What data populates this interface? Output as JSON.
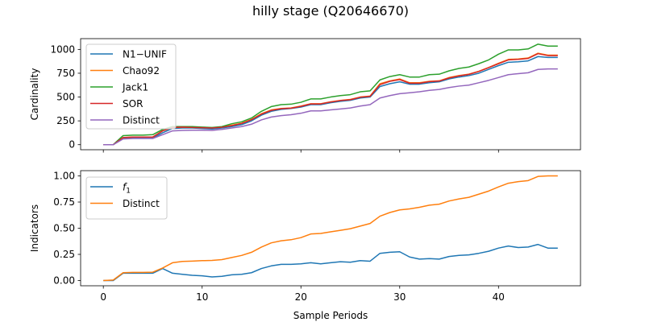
{
  "figure": {
    "title": "hilly stage (Q20646670)"
  },
  "colors": {
    "blue": "#1f77b4",
    "orange": "#ff7f0e",
    "green": "#2ca02c",
    "red": "#d62728",
    "purple": "#9467bd"
  },
  "chart_data": [
    {
      "type": "line",
      "title": "hilly stage (Q20646670)",
      "xlabel": "",
      "ylabel": "Cardinality",
      "xlim": [
        -2.3,
        48.3
      ],
      "ylim": [
        -53,
        1113
      ],
      "xticks": [
        0,
        10,
        20,
        30,
        40
      ],
      "xtick_labels_visible": false,
      "yticks": [
        0,
        250,
        500,
        750,
        1000
      ],
      "grid": false,
      "legend_position": "upper left",
      "x": [
        0,
        1,
        2,
        3,
        4,
        5,
        6,
        7,
        8,
        9,
        10,
        11,
        12,
        13,
        14,
        15,
        16,
        17,
        18,
        19,
        20,
        21,
        22,
        23,
        24,
        25,
        26,
        27,
        28,
        29,
        30,
        31,
        32,
        33,
        34,
        35,
        36,
        37,
        38,
        39,
        40,
        41,
        42,
        43,
        44,
        45,
        46
      ],
      "series": [
        {
          "name": "N1−UNIF",
          "color": "#1f77b4",
          "values": [
            0,
            0,
            65,
            70,
            70,
            70,
            125,
            170,
            175,
            175,
            170,
            165,
            175,
            190,
            210,
            250,
            310,
            350,
            370,
            380,
            395,
            420,
            420,
            440,
            455,
            465,
            490,
            500,
            610,
            640,
            660,
            635,
            635,
            650,
            660,
            690,
            710,
            725,
            750,
            790,
            830,
            865,
            870,
            880,
            925,
            915,
            915
          ]
        },
        {
          "name": "Chao92",
          "color": "#ff7f0e",
          "values": [
            0,
            0,
            75,
            80,
            80,
            80,
            145,
            180,
            185,
            182,
            180,
            178,
            185,
            205,
            225,
            265,
            325,
            365,
            380,
            385,
            405,
            430,
            430,
            450,
            465,
            475,
            500,
            510,
            640,
            670,
            690,
            650,
            650,
            665,
            670,
            705,
            725,
            740,
            770,
            810,
            855,
            895,
            900,
            910,
            960,
            940,
            940
          ]
        },
        {
          "name": "Jack1",
          "color": "#2ca02c",
          "values": [
            0,
            0,
            95,
            100,
            100,
            105,
            160,
            190,
            190,
            190,
            185,
            180,
            190,
            220,
            240,
            280,
            350,
            400,
            420,
            425,
            445,
            480,
            480,
            500,
            515,
            525,
            555,
            565,
            680,
            715,
            735,
            710,
            710,
            735,
            740,
            775,
            800,
            815,
            850,
            890,
            950,
            995,
            995,
            1005,
            1055,
            1035,
            1035
          ]
        },
        {
          "name": "SOR",
          "color": "#d62728",
          "values": [
            0,
            0,
            75,
            80,
            80,
            80,
            145,
            180,
            185,
            180,
            178,
            175,
            183,
            200,
            222,
            262,
            320,
            360,
            378,
            383,
            402,
            428,
            428,
            448,
            463,
            472,
            498,
            508,
            630,
            665,
            683,
            645,
            645,
            662,
            668,
            700,
            722,
            738,
            768,
            808,
            850,
            890,
            895,
            905,
            955,
            935,
            935
          ]
        },
        {
          "name": "Distinct",
          "color": "#9467bd",
          "values": [
            0,
            0,
            60,
            65,
            65,
            65,
            105,
            145,
            150,
            152,
            152,
            150,
            160,
            175,
            190,
            215,
            260,
            290,
            305,
            315,
            330,
            355,
            355,
            365,
            375,
            385,
            405,
            420,
            490,
            515,
            535,
            545,
            555,
            570,
            580,
            600,
            615,
            625,
            650,
            675,
            705,
            735,
            745,
            755,
            790,
            795,
            795
          ]
        }
      ]
    },
    {
      "type": "line",
      "xlabel": "Sample Periods",
      "ylabel": "Indicators",
      "xlim": [
        -2.3,
        48.3
      ],
      "ylim": [
        -0.05,
        1.05
      ],
      "xticks": [
        0,
        10,
        20,
        30,
        40
      ],
      "yticks": [
        0.0,
        0.25,
        0.5,
        0.75,
        1.0
      ],
      "ytick_labels": [
        "0.00",
        "0.25",
        "0.50",
        "0.75",
        "1.00"
      ],
      "grid": false,
      "legend_position": "upper left",
      "x": [
        0,
        1,
        2,
        3,
        4,
        5,
        6,
        7,
        8,
        9,
        10,
        11,
        12,
        13,
        14,
        15,
        16,
        17,
        18,
        19,
        20,
        21,
        22,
        23,
        24,
        25,
        26,
        27,
        28,
        29,
        30,
        31,
        32,
        33,
        34,
        35,
        36,
        37,
        38,
        39,
        40,
        41,
        42,
        43,
        44,
        45,
        46
      ],
      "series": [
        {
          "name": "f1",
          "name_parts": {
            "base": "f",
            "sub": "1"
          },
          "color": "#1f77b4",
          "values": [
            0,
            0,
            0.07,
            0.07,
            0.07,
            0.07,
            0.115,
            0.07,
            0.06,
            0.05,
            0.045,
            0.035,
            0.04,
            0.055,
            0.06,
            0.075,
            0.115,
            0.14,
            0.155,
            0.155,
            0.16,
            0.17,
            0.16,
            0.17,
            0.18,
            0.175,
            0.19,
            0.185,
            0.26,
            0.27,
            0.275,
            0.225,
            0.205,
            0.21,
            0.205,
            0.23,
            0.24,
            0.245,
            0.26,
            0.28,
            0.31,
            0.33,
            0.315,
            0.32,
            0.345,
            0.31,
            0.31
          ]
        },
        {
          "name": "Distinct",
          "color": "#ff7f0e",
          "values": [
            0,
            0.005,
            0.075,
            0.078,
            0.078,
            0.08,
            0.12,
            0.17,
            0.183,
            0.186,
            0.19,
            0.192,
            0.2,
            0.22,
            0.24,
            0.27,
            0.32,
            0.36,
            0.38,
            0.39,
            0.41,
            0.445,
            0.45,
            0.465,
            0.48,
            0.495,
            0.52,
            0.545,
            0.615,
            0.65,
            0.675,
            0.685,
            0.7,
            0.72,
            0.73,
            0.76,
            0.78,
            0.795,
            0.825,
            0.855,
            0.895,
            0.93,
            0.945,
            0.955,
            0.995,
            1.0,
            1.0
          ]
        }
      ]
    }
  ]
}
